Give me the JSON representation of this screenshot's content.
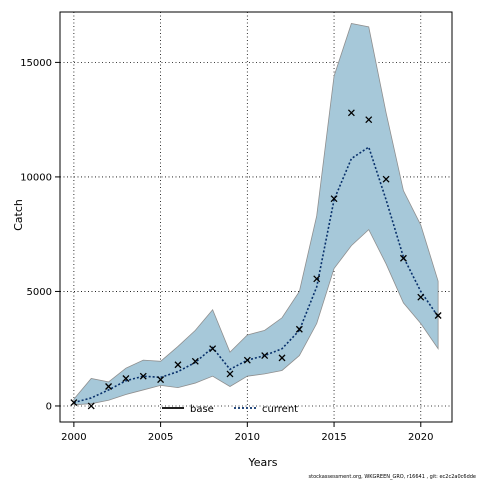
{
  "chart_data": {
    "type": "line",
    "xlabel": "Years",
    "ylabel": "Catch",
    "xlim": [
      1999.2,
      2021.8
    ],
    "ylim": [
      -700,
      17200
    ],
    "xticks": [
      2000,
      2005,
      2010,
      2015,
      2020
    ],
    "xtick_labels": [
      "2000",
      "2005",
      "2010",
      "2015",
      "2020"
    ],
    "yticks": [
      0,
      5000,
      10000,
      15000
    ],
    "ytick_labels": [
      "0",
      "5000",
      "10000",
      "15000"
    ],
    "grid": true,
    "legend_position": "bottom-center",
    "band": {
      "x": [
        2000,
        2001,
        2002,
        2003,
        2004,
        2005,
        2006,
        2007,
        2008,
        2009,
        2010,
        2011,
        2012,
        2013,
        2014,
        2015,
        2016,
        2017,
        2018,
        2019,
        2020,
        2021
      ],
      "upper": [
        300,
        1200,
        1050,
        1650,
        2000,
        1950,
        2600,
        3300,
        4200,
        2350,
        3100,
        3300,
        3850,
        5000,
        8300,
        14400,
        16700,
        16550,
        12800,
        9400,
        7900,
        5450
      ],
      "lower": [
        50,
        100,
        250,
        500,
        700,
        900,
        800,
        1000,
        1300,
        850,
        1300,
        1400,
        1550,
        2200,
        3600,
        6000,
        7000,
        7700,
        6200,
        4500,
        3600,
        2500
      ]
    },
    "series": [
      {
        "name": "base",
        "style": "solid",
        "color": "#000000",
        "values": []
      },
      {
        "name": "current",
        "style": "dotted",
        "color": "#08306b",
        "x": [
          2000,
          2001,
          2002,
          2003,
          2004,
          2005,
          2006,
          2007,
          2008,
          2009,
          2010,
          2011,
          2012,
          2013,
          2014,
          2015,
          2016,
          2017,
          2018,
          2019,
          2020,
          2021
        ],
        "values": [
          150,
          350,
          700,
          1100,
          1300,
          1250,
          1500,
          1900,
          2550,
          1600,
          2000,
          2200,
          2500,
          3300,
          5200,
          9000,
          10800,
          11300,
          9000,
          6500,
          5000,
          3900
        ]
      }
    ],
    "observed": {
      "x": [
        2000,
        2001,
        2002,
        2003,
        2004,
        2005,
        2006,
        2007,
        2008,
        2009,
        2010,
        2011,
        2012,
        2013,
        2014,
        2015,
        2016,
        2017,
        2018,
        2019,
        2020,
        2021
      ],
      "values": [
        150,
        0,
        850,
        1200,
        1300,
        1150,
        1800,
        1950,
        2500,
        1400,
        2000,
        2200,
        2100,
        3350,
        5550,
        9050,
        12800,
        12500,
        9900,
        6450,
        4750,
        3950
      ]
    },
    "colors": {
      "band_fill": "#a6c8d9",
      "band_edge": "#8f8f8f"
    }
  },
  "legend": {
    "base_label": "base",
    "current_label": "current"
  },
  "footer": {
    "text": "stockassessment.org, WKGREEN_GRO, r16641 , git: ec2c2a0c6dde"
  }
}
